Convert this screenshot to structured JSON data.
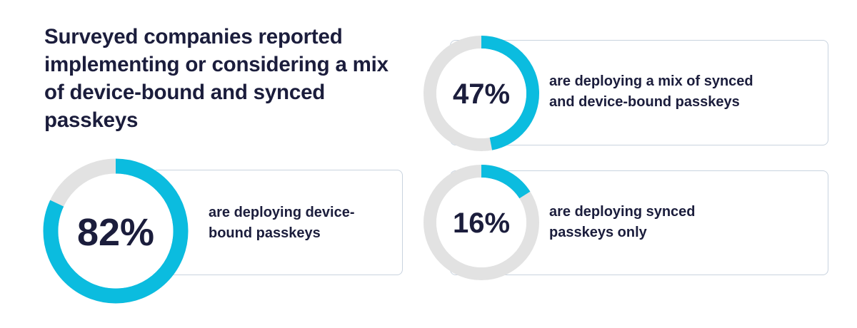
{
  "headline": "Surveyed companies reported implementing or considering a mix of device-bound and synced passkeys",
  "colors": {
    "accent": "#0bbcdf",
    "track": "#e2e2e2",
    "text": "#1b1d3c",
    "card_border": "#c9d3df"
  },
  "chart_data": {
    "type": "pie",
    "unit": "%",
    "items": [
      {
        "value": 82,
        "label": "82%",
        "description": "are deploying device-bound passkeys",
        "lines": [
          "are deploying device-",
          "bound passkeys"
        ]
      },
      {
        "value": 47,
        "label": "47%",
        "description": "are deploying a mix of synced and device-bound passkeys",
        "lines": [
          "are deploying a mix of synced",
          "and device-bound passkeys"
        ]
      },
      {
        "value": 16,
        "label": "16%",
        "description": "are deploying synced passkeys only",
        "lines": [
          "are deploying synced",
          "passkeys only"
        ]
      }
    ]
  }
}
